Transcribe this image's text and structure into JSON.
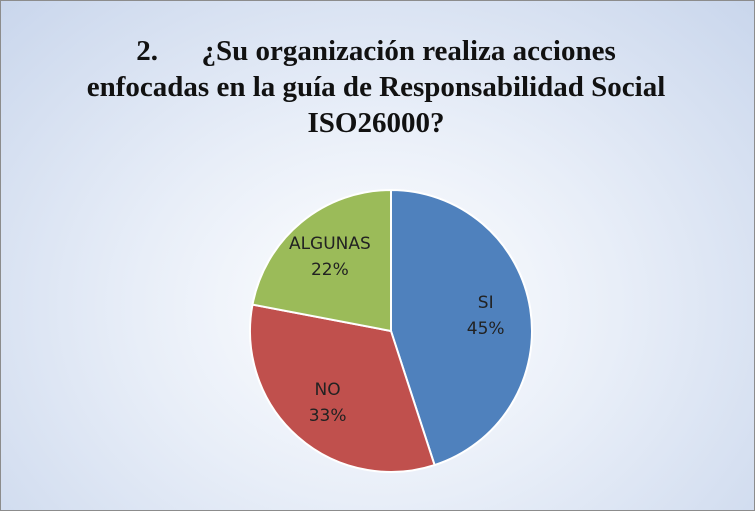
{
  "chart_data": {
    "type": "pie",
    "title": "2.      ¿Su organización realiza acciones enfocadas en la guía de Responsabilidad Social ISO26000?",
    "categories": [
      "SI",
      "NO",
      "ALGUNAS"
    ],
    "values": [
      45,
      33,
      22
    ],
    "value_labels": [
      "45%",
      "33%",
      "22%"
    ],
    "colors": [
      "#4f81bd",
      "#c0504d",
      "#9bbb59"
    ]
  }
}
